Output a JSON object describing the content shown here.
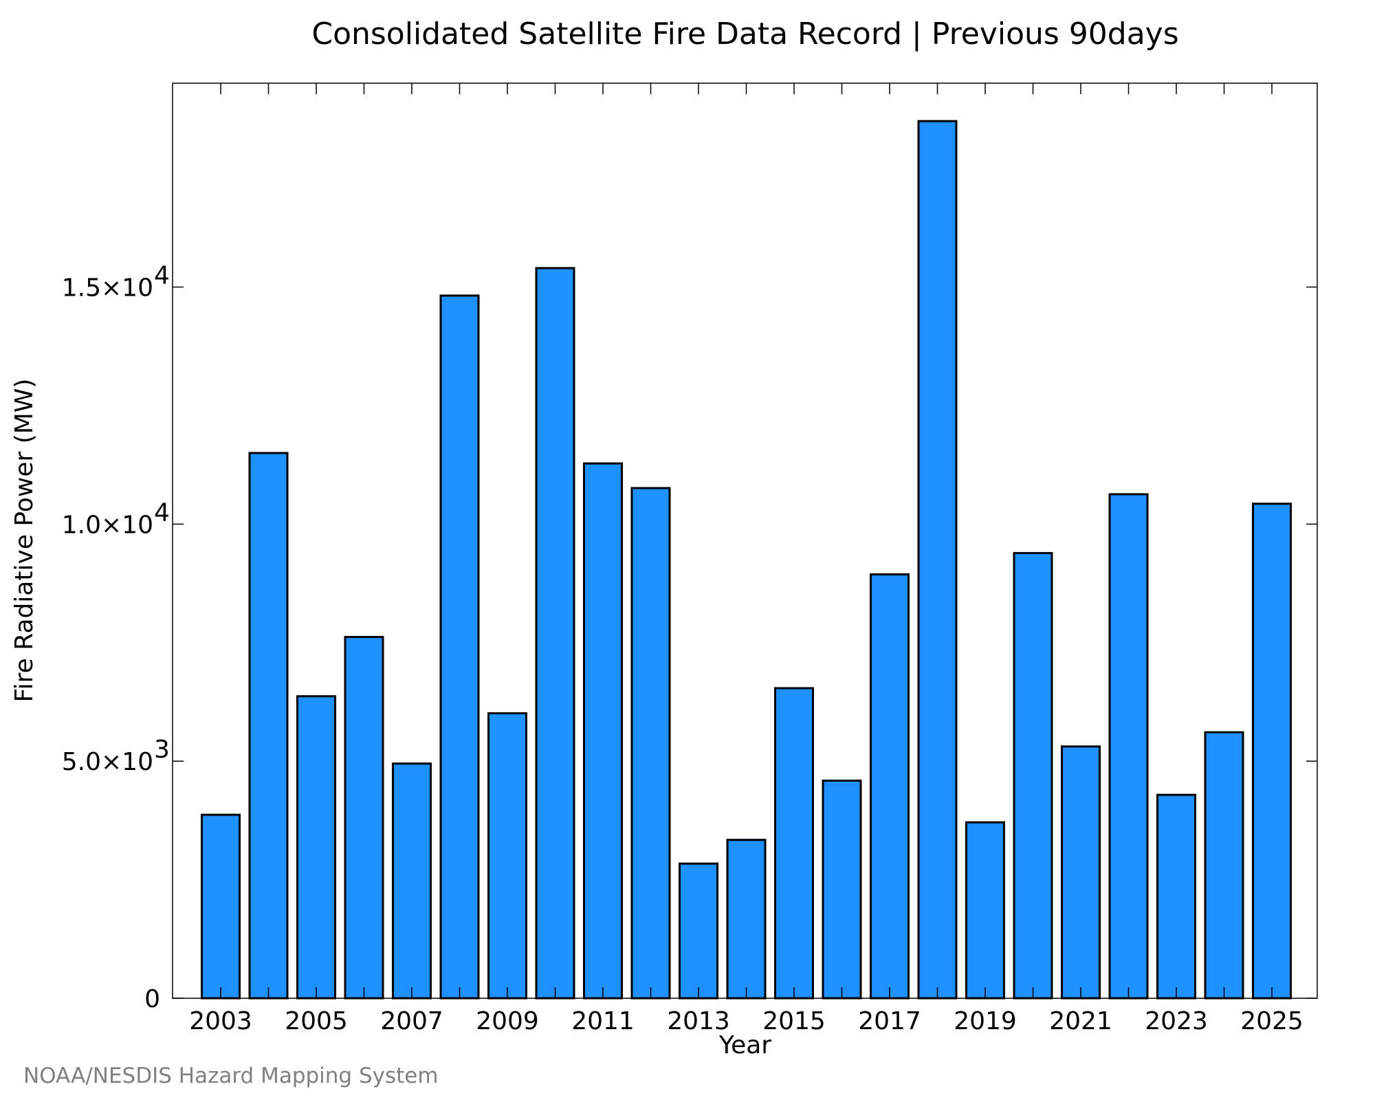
{
  "chart_data": {
    "type": "bar",
    "title": "Consolidated Satellite Fire Data Record | Previous 90days",
    "xlabel": "Year",
    "ylabel": "Fire Radiative Power (MW)",
    "categories": [
      "2003",
      "2004",
      "2005",
      "2006",
      "2007",
      "2008",
      "2009",
      "2010",
      "2011",
      "2012",
      "2013",
      "2014",
      "2015",
      "2016",
      "2017",
      "2018",
      "2019",
      "2020",
      "2021",
      "2022",
      "2023",
      "2024",
      "2025"
    ],
    "x_tick_labels": [
      "2003",
      "2005",
      "2007",
      "2009",
      "2011",
      "2013",
      "2015",
      "2017",
      "2019",
      "2021",
      "2023",
      "2025"
    ],
    "values": [
      3870,
      11500,
      6370,
      7620,
      4950,
      14820,
      6010,
      15400,
      11280,
      10760,
      2840,
      3340,
      6540,
      4590,
      8940,
      18500,
      3710,
      9390,
      5310,
      10630,
      4290,
      5610,
      10430
    ],
    "ylim": [
      0,
      19300
    ],
    "y_ticks": [
      {
        "value": 0,
        "mantissa": "0",
        "exponent": ""
      },
      {
        "value": 5000,
        "mantissa": "5.0×10",
        "exponent": "3"
      },
      {
        "value": 10000,
        "mantissa": "1.0×10",
        "exponent": "4"
      },
      {
        "value": 15000,
        "mantissa": "1.5×10",
        "exponent": "4"
      }
    ],
    "bar_color": "#1e90ff",
    "grid": false,
    "legend": "none"
  },
  "footer": {
    "credit": "NOAA/NESDIS Hazard Mapping System"
  }
}
